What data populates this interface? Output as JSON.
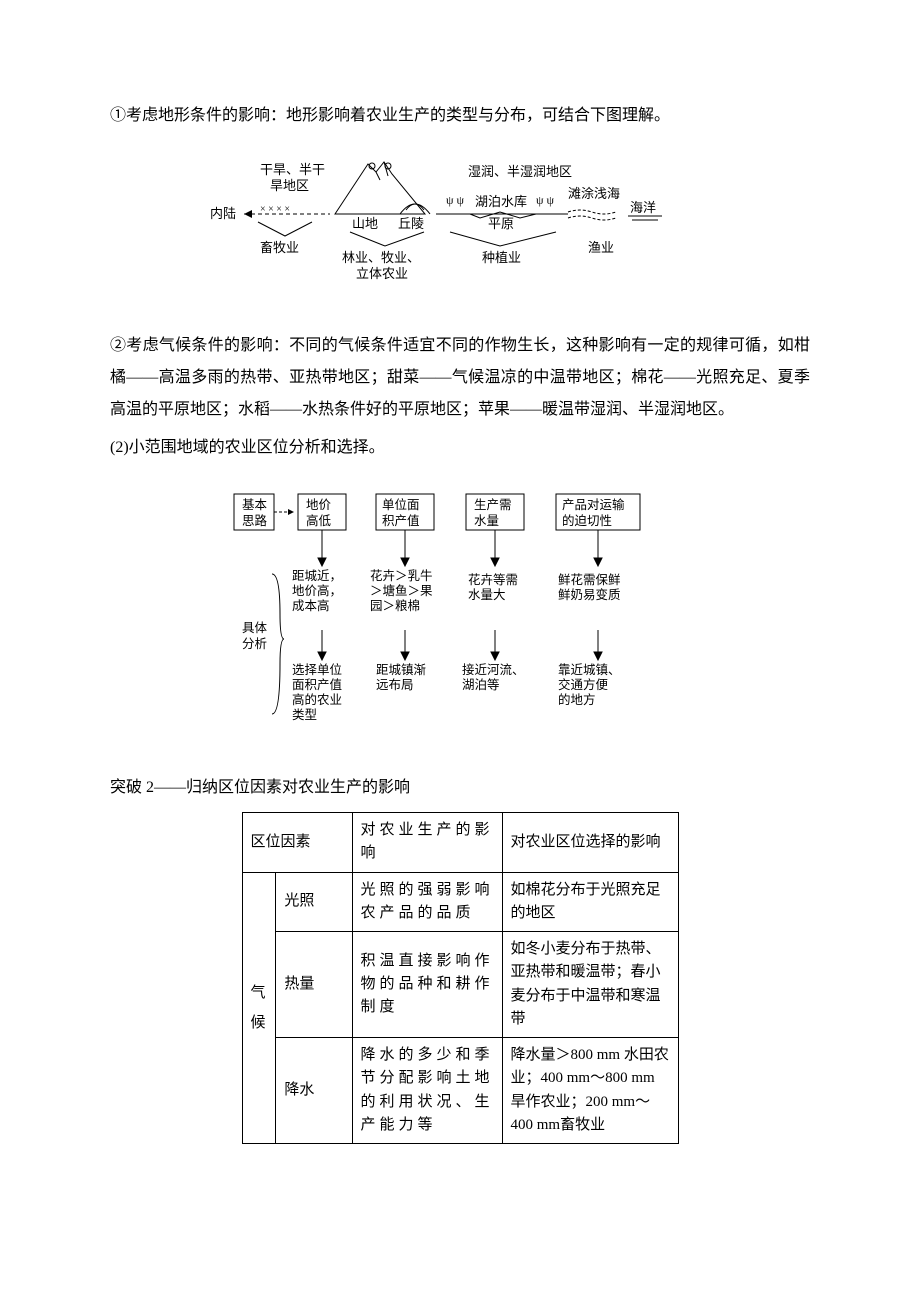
{
  "p1": "①考虑地形条件的影响：地形影响着农业生产的类型与分布，可结合下图理解。",
  "diagram1": {
    "left_top1": "干旱、半干",
    "left_top2": "旱地区",
    "left_inland": "内陆",
    "left_bottom": "畜牧业",
    "mountain": "山地",
    "hill": "丘陵",
    "mid_bottom1": "林业、牧业、",
    "mid_bottom2": "立体农业",
    "right_top": "湿润、半湿润地区",
    "lake": "湖泊水库",
    "plain": "平原",
    "planting": "种植业",
    "tidal": "滩涂浅海",
    "ocean": "海洋",
    "fishery": "渔业"
  },
  "p2": "②考虑气候条件的影响：不同的气候条件适宜不同的作物生长，这种影响有一定的规律可循，如柑橘——高温多雨的热带、亚热带地区；甜菜——气候温凉的中温带地区；棉花——光照充足、夏季高温的平原地区；水稻——水热条件好的平原地区；苹果——暖温带湿润、半湿润地区。",
  "p3": "(2)小范围地域的农业区位分析和选择。",
  "diagram2": {
    "basic_idea1": "基本",
    "basic_idea2": "思路",
    "col1": "地价\n高低",
    "col2": "单位面\n积产值",
    "col3": "生产需\n水量",
    "col4": "产品对运输\n的迫切性",
    "r2c1": "距城近，\n地价高，\n成本高",
    "r2c2": "花卉＞乳牛\n＞塘鱼＞果\n园＞粮棉",
    "r2c3": "花卉等需\n水量大",
    "r2c4": "鲜花需保鲜\n鲜奶易变质",
    "analysis1": "具体",
    "analysis2": "分析",
    "r3c1": "选择单位\n面积产值\n高的农业\n类型",
    "r3c2": "距城镇渐\n远布局",
    "r3c3": "接近河流、\n湖泊等",
    "r3c4": "靠近城镇、\n交通方便\n的地方"
  },
  "heading": "突破 2——归纳区位因素对农业生产的影响",
  "table": {
    "h1": "区位因素",
    "h2": "对农业生产的影响",
    "h3": "对农业区位选择的影响",
    "group": "气候",
    "rows": [
      {
        "f": "光照",
        "c2": "光照的强弱影响农产品的品质",
        "c3": "如棉花分布于光照充足的地区"
      },
      {
        "f": "热量",
        "c2": "积温直接影响作物的品种和耕作制度",
        "c3": "如冬小麦分布于热带、亚热带和暖温带；春小麦分布于中温带和寒温带"
      },
      {
        "f": "降水",
        "c2": "降水的多少和季节分配影响土地的利用状况、生产能力等",
        "c3": "降水量＞800 mm 水田农业；400 mm～800 mm 旱作农业；200 mm～400 mm畜牧业"
      }
    ]
  },
  "colors": {
    "line": "#000",
    "fill_box": "#fff"
  }
}
